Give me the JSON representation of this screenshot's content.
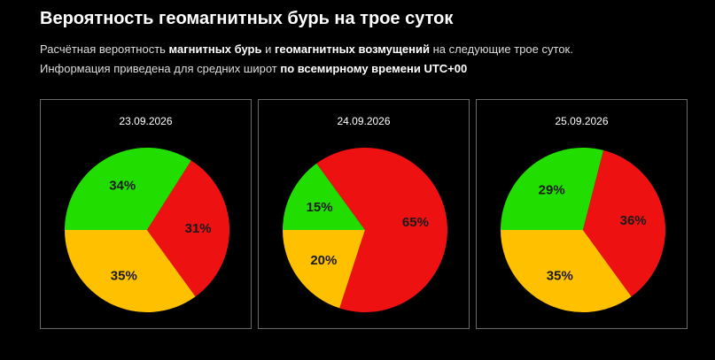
{
  "header": {
    "title": "Вероятность геомагнитных бурь на трое суток",
    "line1": {
      "p1": "Расчётная вероятность ",
      "b1": "магнитных бурь",
      "p2": " и ",
      "b2": "геомагнитных возмущений",
      "p3": " на следующие трое суток."
    },
    "line2": {
      "p1": "Информация приведена для средних широт ",
      "b1": "по всемирному времени UTC+00"
    }
  },
  "colors": {
    "green": "#22dd00",
    "orange": "#ffc000",
    "red": "#ee1111",
    "card_border": "#6a6a6a"
  },
  "chart_data": [
    {
      "type": "pie",
      "title": "23.09.2026",
      "slices": [
        {
          "value": 34,
          "label": "34%",
          "color": "#22dd00"
        },
        {
          "value": 35,
          "label": "35%",
          "color": "#ffc000"
        },
        {
          "value": 31,
          "label": "31%",
          "color": "#ee1111"
        }
      ]
    },
    {
      "type": "pie",
      "title": "24.09.2026",
      "slices": [
        {
          "value": 15,
          "label": "15%",
          "color": "#22dd00"
        },
        {
          "value": 20,
          "label": "20%",
          "color": "#ffc000"
        },
        {
          "value": 65,
          "label": "65%",
          "color": "#ee1111"
        }
      ]
    },
    {
      "type": "pie",
      "title": "25.09.2026",
      "slices": [
        {
          "value": 29,
          "label": "29%",
          "color": "#22dd00"
        },
        {
          "value": 35,
          "label": "35%",
          "color": "#ffc000"
        },
        {
          "value": 36,
          "label": "36%",
          "color": "#ee1111"
        }
      ]
    }
  ]
}
